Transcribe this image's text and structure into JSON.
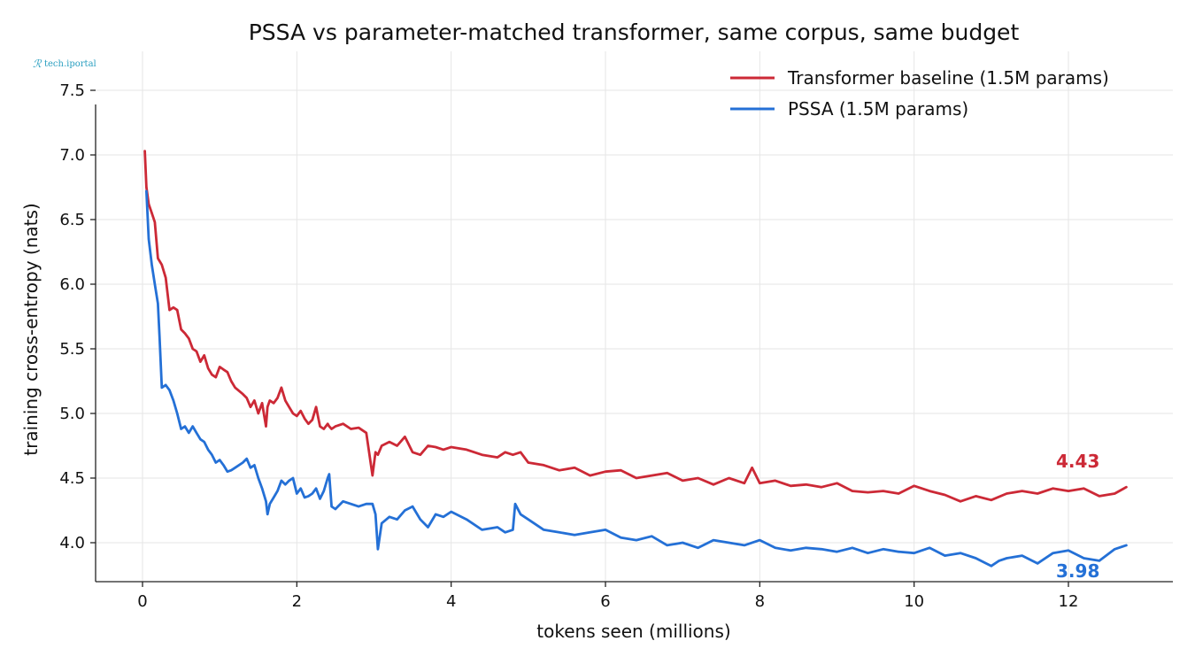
{
  "watermark": "tech.iportal",
  "chart_data": {
    "type": "line",
    "title": "PSSA vs parameter-matched transformer, same corpus, same budget",
    "xlabel": "tokens seen (millions)",
    "ylabel": "training cross-entropy (nats)",
    "xlim": [
      -0.6,
      13.4
    ],
    "ylim": [
      3.72,
      7.65
    ],
    "xticks": [
      0,
      2,
      4,
      6,
      8,
      10,
      12
    ],
    "yticks": [
      4.0,
      4.5,
      5.0,
      5.5,
      6.0,
      6.5,
      7.0,
      7.5
    ],
    "xtick_labels": [
      "0",
      "2",
      "4",
      "6",
      "8",
      "10",
      "12"
    ],
    "ytick_labels": [
      "4.0",
      "4.5",
      "5.0",
      "5.5",
      "6.0",
      "6.5",
      "7.0",
      "7.5"
    ],
    "grid": true,
    "legend_position": "top-right",
    "series": [
      {
        "name": "Transformer baseline (1.5M params)",
        "color": "#cc2936",
        "end_label": "4.43",
        "x": [
          0.03,
          0.05,
          0.08,
          0.12,
          0.16,
          0.2,
          0.22,
          0.25,
          0.3,
          0.35,
          0.4,
          0.45,
          0.5,
          0.55,
          0.6,
          0.65,
          0.7,
          0.75,
          0.8,
          0.85,
          0.9,
          0.95,
          1.0,
          1.05,
          1.1,
          1.15,
          1.2,
          1.3,
          1.35,
          1.4,
          1.45,
          1.5,
          1.55,
          1.6,
          1.62,
          1.65,
          1.7,
          1.75,
          1.8,
          1.85,
          1.9,
          1.95,
          2.0,
          2.05,
          2.1,
          2.15,
          2.2,
          2.25,
          2.3,
          2.35,
          2.4,
          2.42,
          2.45,
          2.5,
          2.6,
          2.7,
          2.8,
          2.9,
          2.98,
          3.02,
          3.05,
          3.1,
          3.2,
          3.3,
          3.4,
          3.5,
          3.6,
          3.7,
          3.8,
          3.9,
          4.0,
          4.2,
          4.4,
          4.6,
          4.7,
          4.8,
          4.9,
          5.0,
          5.2,
          5.4,
          5.6,
          5.8,
          6.0,
          6.2,
          6.4,
          6.6,
          6.8,
          7.0,
          7.2,
          7.4,
          7.6,
          7.8,
          7.9,
          8.0,
          8.2,
          8.4,
          8.6,
          8.8,
          9.0,
          9.2,
          9.4,
          9.6,
          9.8,
          10.0,
          10.2,
          10.4,
          10.6,
          10.8,
          11.0,
          11.2,
          11.4,
          11.6,
          11.8,
          12.0,
          12.2,
          12.4,
          12.6,
          12.75
        ],
        "values": [
          7.03,
          6.75,
          6.62,
          6.55,
          6.48,
          6.2,
          6.18,
          6.15,
          6.05,
          5.8,
          5.82,
          5.8,
          5.65,
          5.62,
          5.58,
          5.5,
          5.48,
          5.4,
          5.45,
          5.35,
          5.3,
          5.28,
          5.36,
          5.34,
          5.32,
          5.25,
          5.2,
          5.15,
          5.12,
          5.05,
          5.1,
          5.0,
          5.08,
          4.9,
          5.05,
          5.1,
          5.08,
          5.12,
          5.2,
          5.1,
          5.05,
          5.0,
          4.98,
          5.02,
          4.96,
          4.92,
          4.95,
          5.05,
          4.9,
          4.88,
          4.92,
          4.9,
          4.88,
          4.9,
          4.92,
          4.88,
          4.89,
          4.85,
          4.52,
          4.7,
          4.68,
          4.75,
          4.78,
          4.75,
          4.82,
          4.7,
          4.68,
          4.75,
          4.74,
          4.72,
          4.74,
          4.72,
          4.68,
          4.66,
          4.7,
          4.68,
          4.7,
          4.62,
          4.6,
          4.56,
          4.58,
          4.52,
          4.55,
          4.56,
          4.5,
          4.52,
          4.54,
          4.48,
          4.5,
          4.45,
          4.5,
          4.46,
          4.58,
          4.46,
          4.48,
          4.44,
          4.45,
          4.43,
          4.46,
          4.4,
          4.39,
          4.4,
          4.38,
          4.44,
          4.4,
          4.37,
          4.32,
          4.36,
          4.33,
          4.38,
          4.4,
          4.38,
          4.42,
          4.4,
          4.42,
          4.36,
          4.38,
          4.43
        ]
      },
      {
        "name": "PSSA (1.5M params)",
        "color": "#2470d6",
        "end_label": "3.98",
        "x": [
          0.05,
          0.08,
          0.12,
          0.16,
          0.2,
          0.22,
          0.25,
          0.3,
          0.35,
          0.4,
          0.45,
          0.5,
          0.55,
          0.6,
          0.65,
          0.7,
          0.75,
          0.8,
          0.85,
          0.9,
          0.95,
          1.0,
          1.05,
          1.1,
          1.15,
          1.2,
          1.3,
          1.35,
          1.4,
          1.45,
          1.5,
          1.55,
          1.6,
          1.62,
          1.65,
          1.7,
          1.75,
          1.8,
          1.85,
          1.9,
          1.95,
          2.0,
          2.05,
          2.1,
          2.15,
          2.2,
          2.25,
          2.3,
          2.35,
          2.4,
          2.42,
          2.45,
          2.5,
          2.6,
          2.7,
          2.8,
          2.9,
          2.98,
          3.02,
          3.05,
          3.1,
          3.2,
          3.3,
          3.4,
          3.5,
          3.6,
          3.7,
          3.8,
          3.9,
          4.0,
          4.2,
          4.4,
          4.6,
          4.7,
          4.8,
          4.83,
          4.9,
          5.0,
          5.2,
          5.4,
          5.6,
          5.8,
          6.0,
          6.2,
          6.4,
          6.6,
          6.8,
          7.0,
          7.2,
          7.4,
          7.6,
          7.8,
          8.0,
          8.2,
          8.4,
          8.6,
          8.8,
          9.0,
          9.2,
          9.4,
          9.6,
          9.8,
          10.0,
          10.2,
          10.4,
          10.6,
          10.8,
          11.0,
          11.1,
          11.2,
          11.4,
          11.6,
          11.8,
          12.0,
          12.2,
          12.4,
          12.6,
          12.75
        ],
        "values": [
          6.72,
          6.35,
          6.15,
          6.0,
          5.85,
          5.6,
          5.2,
          5.22,
          5.18,
          5.1,
          5.0,
          4.88,
          4.9,
          4.85,
          4.9,
          4.85,
          4.8,
          4.78,
          4.72,
          4.68,
          4.62,
          4.64,
          4.6,
          4.55,
          4.56,
          4.58,
          4.62,
          4.65,
          4.58,
          4.6,
          4.5,
          4.42,
          4.32,
          4.22,
          4.3,
          4.35,
          4.4,
          4.48,
          4.45,
          4.48,
          4.5,
          4.38,
          4.42,
          4.35,
          4.36,
          4.38,
          4.42,
          4.34,
          4.4,
          4.5,
          4.53,
          4.28,
          4.26,
          4.32,
          4.3,
          4.28,
          4.3,
          4.3,
          4.22,
          3.95,
          4.15,
          4.2,
          4.18,
          4.25,
          4.28,
          4.18,
          4.12,
          4.22,
          4.2,
          4.24,
          4.18,
          4.1,
          4.12,
          4.08,
          4.1,
          4.3,
          4.22,
          4.18,
          4.1,
          4.08,
          4.06,
          4.08,
          4.1,
          4.04,
          4.02,
          4.05,
          3.98,
          4.0,
          3.96,
          4.02,
          4.0,
          3.98,
          4.02,
          3.96,
          3.94,
          3.96,
          3.95,
          3.93,
          3.96,
          3.92,
          3.95,
          3.93,
          3.92,
          3.96,
          3.9,
          3.92,
          3.88,
          3.82,
          3.86,
          3.88,
          3.9,
          3.84,
          3.92,
          3.94,
          3.88,
          3.86,
          3.95,
          3.98
        ]
      }
    ]
  }
}
